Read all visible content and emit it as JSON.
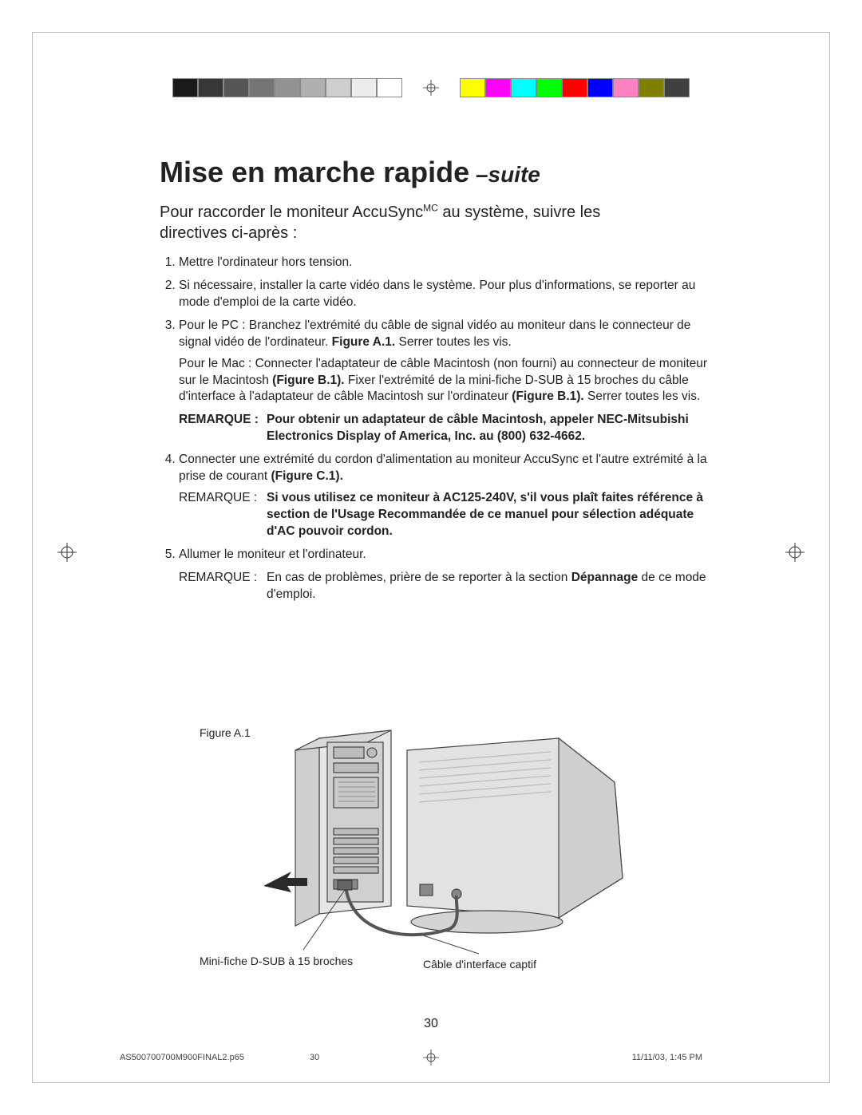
{
  "color_bar": {
    "left_swatches": [
      "#1a1a1a",
      "#383838",
      "#565656",
      "#747474",
      "#929292",
      "#b0b0b0",
      "#cecece",
      "#ececec",
      "#ffffff"
    ],
    "right_swatches": [
      "#ffff00",
      "#ff00ff",
      "#00ffff",
      "#00ff00",
      "#ff0000",
      "#0000ff",
      "#ff80c0",
      "#808000",
      "#404040"
    ],
    "border_color": "#888888"
  },
  "title": {
    "main": "Mise en marche rapide",
    "suffix": " –suite"
  },
  "intro": {
    "line1_a": "Pour raccorder le moniteur AccuSync",
    "line1_sup": "MC",
    "line1_b": " au système, suivre les",
    "line2": "directives ci-après :"
  },
  "steps": {
    "s1": "Mettre l'ordinateur hors tension.",
    "s2": "Si nécessaire, installer la carte vidéo dans le système. Pour plus d'informations, se reporter au mode d'emploi de la carte vidéo.",
    "s3_a": "Pour le PC : Branchez l'extrémité du câble de signal vidéo au moniteur dans le connecteur de signal vidéo de l'ordinateur. ",
    "s3_b": "Figure A.1.",
    "s3_c": " Serrer toutes les vis.",
    "s3_mac_a": "Pour le Mac : Connecter l'adaptateur de câble Macintosh (non fourni) au connecteur de moniteur sur le Macintosh ",
    "s3_mac_b": "(Figure B.1).",
    "s3_mac_c": " Fixer l'extrémité de la mini-fiche D-SUB à 15 broches du câble d'interface à l'adaptateur de câble Macintosh sur l'ordinateur ",
    "s3_mac_d": "(Figure B.1).",
    "s3_mac_e": " Serrer toutes les vis.",
    "remarque1_label": "REMARQUE :",
    "remarque1_text": "Pour obtenir un adaptateur de câble Macintosh, appeler NEC-Mitsubishi Electronics Display of America, Inc. au (800) 632-4662.",
    "s4_a": "Connecter une extrémité du cordon d'alimentation au moniteur AccuSync et l'autre extrémité à la prise de courant ",
    "s4_b": "(Figure C.1).",
    "remarque2_label": "REMARQUE :",
    "remarque2_text": "Si vous utilisez ce moniteur à AC125-240V, s'il vous plaît faites référence à section de l'Usage Recommandée de ce manuel pour sélection adéquate d'AC pouvoir cordon.",
    "s5": "Allumer le moniteur et l'ordinateur.",
    "remarque3_label": "REMARQUE :",
    "remarque3_a": "En cas de problèmes, prière de se reporter à la section ",
    "remarque3_b": "Dépannage",
    "remarque3_c": " de ce mode d'emploi."
  },
  "figure": {
    "label": "Figure A.1",
    "caption1": "Mini-fiche D-SUB à 15 broches",
    "caption2": "Câble d'interface captif",
    "colors": {
      "stroke": "#444444",
      "fill_light": "#e6e6e6",
      "fill_mid": "#cfcfcf",
      "fill_dark": "#b0b0b0",
      "arrow": "#2a2a2a"
    }
  },
  "page_number": "30",
  "footer": {
    "filename": "AS500700700M900FINAL2.p65",
    "page": "30",
    "datetime": "11/11/03, 1:45 PM"
  }
}
